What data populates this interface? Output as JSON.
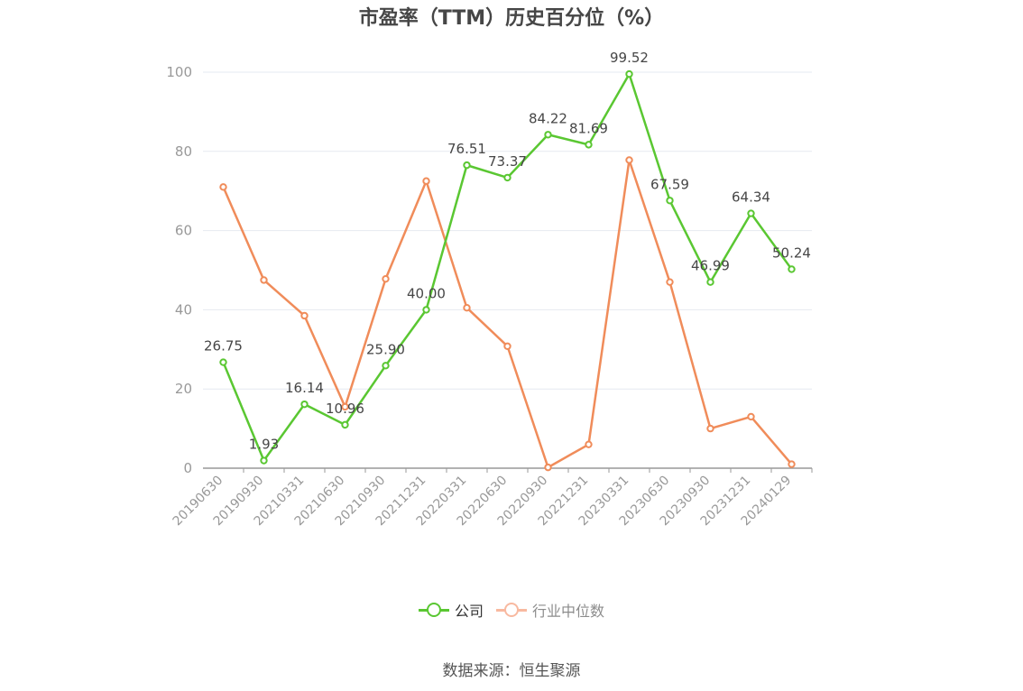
{
  "chart_data": {
    "type": "line",
    "title": "市盈率（TTM）历史百分位（%）",
    "categories": [
      "20190630",
      "20190930",
      "20210331",
      "20210630",
      "20210930",
      "20211231",
      "20220331",
      "20220630",
      "20220930",
      "20221231",
      "20230331",
      "20230630",
      "20230930",
      "20231231",
      "20240129"
    ],
    "series": [
      {
        "name": "公司",
        "color": "#5ac732",
        "show_labels": true,
        "values": [
          26.75,
          1.93,
          16.14,
          10.96,
          25.9,
          40.0,
          76.51,
          73.37,
          84.22,
          81.69,
          99.52,
          67.59,
          46.99,
          64.34,
          50.24
        ]
      },
      {
        "name": "行业中位数",
        "color": "#f08c5a",
        "show_labels": false,
        "values": [
          71,
          47.5,
          38.5,
          15.5,
          47.8,
          72.5,
          40.5,
          30.8,
          0.2,
          6,
          77.8,
          47,
          10,
          13,
          1
        ]
      }
    ],
    "ylim": [
      0,
      100
    ],
    "yticks": [
      0,
      20,
      40,
      60,
      80,
      100
    ],
    "xlabel": "",
    "ylabel": "",
    "grid": true,
    "legend_position": "bottom"
  },
  "legend": {
    "items": [
      {
        "label": "公司",
        "color": "#5ac732"
      },
      {
        "label": "行业中位数",
        "color": "#f8b9a0"
      }
    ]
  },
  "source_text": "数据来源：恒生聚源"
}
